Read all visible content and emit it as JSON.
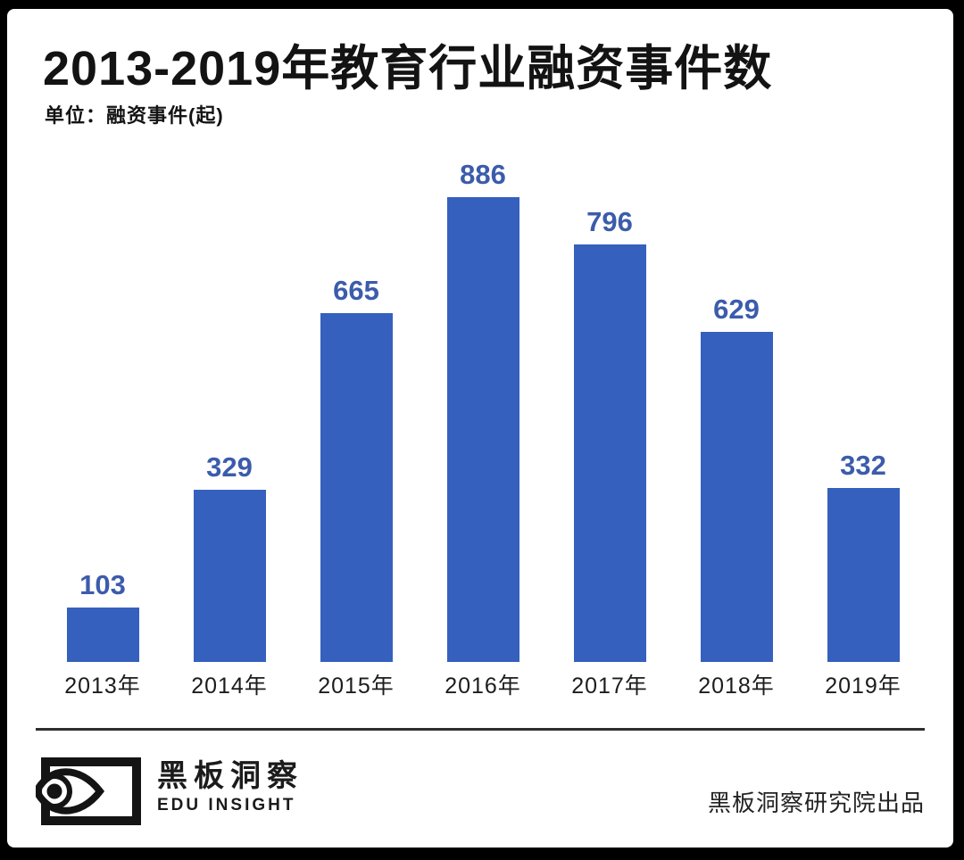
{
  "header": {
    "title": "2013-2019年教育行业融资事件数",
    "subtitle": "单位：融资事件(起)"
  },
  "chart_data": {
    "type": "bar",
    "title": "2013-2019年教育行业融资事件数",
    "categories": [
      "2013年",
      "2014年",
      "2015年",
      "2016年",
      "2017年",
      "2018年",
      "2019年"
    ],
    "values": [
      103,
      329,
      665,
      886,
      796,
      629,
      332
    ],
    "xlabel": "",
    "ylabel": "融资事件(起)",
    "ylim": [
      0,
      886
    ],
    "grid": false,
    "legend": false,
    "value_labels_shown": true,
    "bar_color": "#3560be",
    "value_label_color": "#3c5cab"
  },
  "footer": {
    "logo_icon": "eye-logo",
    "brand_cn": "黑板洞察",
    "brand_en": "EDU INSIGHT",
    "credit": "黑板洞察研究院出品"
  },
  "colors": {
    "page_background": "#000000",
    "card_background": "#ffffff",
    "bar": "#3560be",
    "value_label": "#3c5cab",
    "text": "#141414",
    "divider": "#2e2e2e"
  }
}
